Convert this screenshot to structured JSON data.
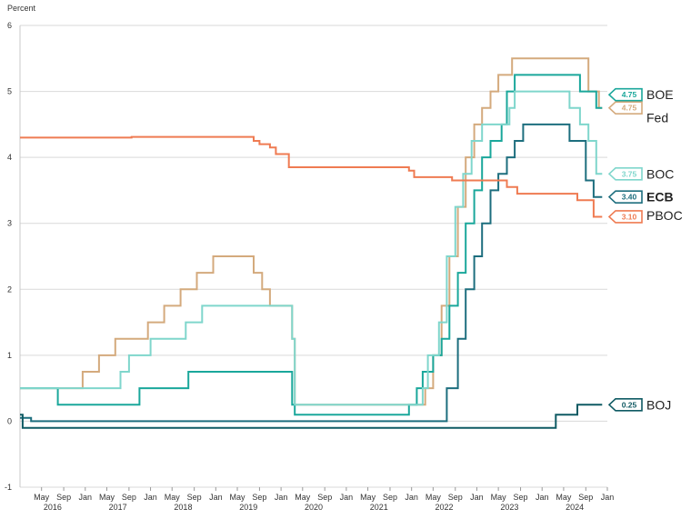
{
  "chart_data": {
    "type": "line",
    "ylabel": "Percent",
    "ylim": [
      -1,
      6
    ],
    "y_ticks": [
      "-1",
      "0",
      "1",
      "2",
      "3",
      "4",
      "5",
      "6"
    ],
    "x_tick_labels": [
      {
        "label": "May",
        "date": 2016.33
      },
      {
        "label": "Sep",
        "date": 2016.67
      },
      {
        "label": "Jan",
        "date": 2017.0
      },
      {
        "label": "May",
        "date": 2017.33
      },
      {
        "label": "Sep",
        "date": 2017.67
      },
      {
        "label": "Jan",
        "date": 2018.0
      },
      {
        "label": "May",
        "date": 2018.33
      },
      {
        "label": "Sep",
        "date": 2018.67
      },
      {
        "label": "Jan",
        "date": 2019.0
      },
      {
        "label": "May",
        "date": 2019.33
      },
      {
        "label": "Sep",
        "date": 2019.67
      },
      {
        "label": "Jan",
        "date": 2020.0
      },
      {
        "label": "May",
        "date": 2020.33
      },
      {
        "label": "Sep",
        "date": 2020.67
      },
      {
        "label": "Jan",
        "date": 2021.0
      },
      {
        "label": "May",
        "date": 2021.33
      },
      {
        "label": "Sep",
        "date": 2021.67
      },
      {
        "label": "Jan",
        "date": 2022.0
      },
      {
        "label": "May",
        "date": 2022.33
      },
      {
        "label": "Sep",
        "date": 2022.67
      },
      {
        "label": "Jan",
        "date": 2023.0
      },
      {
        "label": "May",
        "date": 2023.33
      },
      {
        "label": "Sep",
        "date": 2023.67
      },
      {
        "label": "Jan",
        "date": 2024.0
      },
      {
        "label": "May",
        "date": 2024.33
      },
      {
        "label": "Sep",
        "date": 2024.67
      },
      {
        "label": "Jan",
        "date": 2025.0
      }
    ],
    "year_labels": [
      {
        "label": "2016",
        "date": 2016.5
      },
      {
        "label": "2017",
        "date": 2017.5
      },
      {
        "label": "2018",
        "date": 2018.5
      },
      {
        "label": "2019",
        "date": 2019.5
      },
      {
        "label": "2020",
        "date": 2020.5
      },
      {
        "label": "2021",
        "date": 2021.5
      },
      {
        "label": "2022",
        "date": 2022.5
      },
      {
        "label": "2023",
        "date": 2023.5
      },
      {
        "label": "2024",
        "date": 2024.5
      }
    ],
    "series": [
      {
        "name": "Fed",
        "color": "#d4aa7d",
        "bold": false,
        "end_value": "4.75",
        "label_y": 4.6,
        "box_y": 4.75,
        "points": [
          [
            2016.0,
            0.5
          ],
          [
            2016.96,
            0.5
          ],
          [
            2016.96,
            0.75
          ],
          [
            2017.21,
            0.75
          ],
          [
            2017.21,
            1.0
          ],
          [
            2017.46,
            1.0
          ],
          [
            2017.46,
            1.25
          ],
          [
            2017.96,
            1.25
          ],
          [
            2017.96,
            1.5
          ],
          [
            2018.21,
            1.5
          ],
          [
            2018.21,
            1.75
          ],
          [
            2018.46,
            1.75
          ],
          [
            2018.46,
            2.0
          ],
          [
            2018.71,
            2.0
          ],
          [
            2018.71,
            2.25
          ],
          [
            2018.96,
            2.25
          ],
          [
            2018.96,
            2.5
          ],
          [
            2019.58,
            2.5
          ],
          [
            2019.58,
            2.25
          ],
          [
            2019.71,
            2.25
          ],
          [
            2019.71,
            2.0
          ],
          [
            2019.83,
            2.0
          ],
          [
            2019.83,
            1.75
          ],
          [
            2020.17,
            1.75
          ],
          [
            2020.17,
            1.25
          ],
          [
            2020.21,
            1.25
          ],
          [
            2020.21,
            0.25
          ],
          [
            2022.21,
            0.25
          ],
          [
            2022.21,
            0.5
          ],
          [
            2022.33,
            0.5
          ],
          [
            2022.33,
            1.0
          ],
          [
            2022.46,
            1.0
          ],
          [
            2022.46,
            1.75
          ],
          [
            2022.58,
            1.75
          ],
          [
            2022.58,
            2.5
          ],
          [
            2022.71,
            2.5
          ],
          [
            2022.71,
            3.25
          ],
          [
            2022.83,
            3.25
          ],
          [
            2022.83,
            4.0
          ],
          [
            2022.96,
            4.0
          ],
          [
            2022.96,
            4.5
          ],
          [
            2023.08,
            4.5
          ],
          [
            2023.08,
            4.75
          ],
          [
            2023.21,
            4.75
          ],
          [
            2023.21,
            5.0
          ],
          [
            2023.33,
            5.0
          ],
          [
            2023.33,
            5.25
          ],
          [
            2023.54,
            5.25
          ],
          [
            2023.54,
            5.5
          ],
          [
            2024.71,
            5.5
          ],
          [
            2024.71,
            5.0
          ],
          [
            2024.87,
            5.0
          ],
          [
            2024.87,
            4.75
          ],
          [
            2024.92,
            4.75
          ]
        ]
      },
      {
        "name": "BOE",
        "color": "#1aa79b",
        "bold": false,
        "end_value": "4.75",
        "label_y": 4.95,
        "box_y": 4.95,
        "points": [
          [
            2016.0,
            0.5
          ],
          [
            2016.58,
            0.5
          ],
          [
            2016.58,
            0.25
          ],
          [
            2017.83,
            0.25
          ],
          [
            2017.83,
            0.5
          ],
          [
            2018.58,
            0.5
          ],
          [
            2018.58,
            0.75
          ],
          [
            2020.17,
            0.75
          ],
          [
            2020.17,
            0.25
          ],
          [
            2020.21,
            0.25
          ],
          [
            2020.21,
            0.1
          ],
          [
            2021.96,
            0.1
          ],
          [
            2021.96,
            0.25
          ],
          [
            2022.08,
            0.25
          ],
          [
            2022.08,
            0.5
          ],
          [
            2022.17,
            0.5
          ],
          [
            2022.17,
            0.75
          ],
          [
            2022.33,
            0.75
          ],
          [
            2022.33,
            1.0
          ],
          [
            2022.46,
            1.0
          ],
          [
            2022.46,
            1.25
          ],
          [
            2022.58,
            1.25
          ],
          [
            2022.58,
            1.75
          ],
          [
            2022.71,
            1.75
          ],
          [
            2022.71,
            2.25
          ],
          [
            2022.83,
            2.25
          ],
          [
            2022.83,
            3.0
          ],
          [
            2022.96,
            3.0
          ],
          [
            2022.96,
            3.5
          ],
          [
            2023.08,
            3.5
          ],
          [
            2023.08,
            4.0
          ],
          [
            2023.21,
            4.0
          ],
          [
            2023.21,
            4.25
          ],
          [
            2023.38,
            4.25
          ],
          [
            2023.38,
            4.5
          ],
          [
            2023.46,
            4.5
          ],
          [
            2023.46,
            5.0
          ],
          [
            2023.58,
            5.0
          ],
          [
            2023.58,
            5.25
          ],
          [
            2024.58,
            5.25
          ],
          [
            2024.58,
            5.0
          ],
          [
            2024.83,
            5.0
          ],
          [
            2024.83,
            4.75
          ],
          [
            2024.92,
            4.75
          ]
        ]
      },
      {
        "name": "BOC",
        "color": "#7fd6cc",
        "bold": false,
        "end_value": "3.75",
        "label_y": 3.75,
        "box_y": 3.75,
        "points": [
          [
            2016.0,
            0.5
          ],
          [
            2017.54,
            0.5
          ],
          [
            2017.54,
            0.75
          ],
          [
            2017.67,
            0.75
          ],
          [
            2017.67,
            1.0
          ],
          [
            2018.0,
            1.0
          ],
          [
            2018.0,
            1.25
          ],
          [
            2018.54,
            1.25
          ],
          [
            2018.54,
            1.5
          ],
          [
            2018.79,
            1.5
          ],
          [
            2018.79,
            1.75
          ],
          [
            2020.17,
            1.75
          ],
          [
            2020.17,
            1.25
          ],
          [
            2020.21,
            1.25
          ],
          [
            2020.21,
            0.25
          ],
          [
            2022.17,
            0.25
          ],
          [
            2022.17,
            0.5
          ],
          [
            2022.25,
            0.5
          ],
          [
            2022.25,
            1.0
          ],
          [
            2022.42,
            1.0
          ],
          [
            2022.42,
            1.5
          ],
          [
            2022.54,
            1.5
          ],
          [
            2022.54,
            2.5
          ],
          [
            2022.67,
            2.5
          ],
          [
            2022.67,
            3.25
          ],
          [
            2022.79,
            3.25
          ],
          [
            2022.79,
            3.75
          ],
          [
            2022.92,
            3.75
          ],
          [
            2022.92,
            4.25
          ],
          [
            2023.08,
            4.25
          ],
          [
            2023.08,
            4.5
          ],
          [
            2023.5,
            4.5
          ],
          [
            2023.5,
            4.75
          ],
          [
            2023.58,
            4.75
          ],
          [
            2023.58,
            5.0
          ],
          [
            2024.42,
            5.0
          ],
          [
            2024.42,
            4.75
          ],
          [
            2024.58,
            4.75
          ],
          [
            2024.58,
            4.5
          ],
          [
            2024.71,
            4.5
          ],
          [
            2024.71,
            4.25
          ],
          [
            2024.83,
            4.25
          ],
          [
            2024.83,
            3.75
          ],
          [
            2024.92,
            3.75
          ]
        ]
      },
      {
        "name": "ECB",
        "color": "#1d6e7e",
        "bold": true,
        "end_value": "3.40",
        "label_y": 3.4,
        "box_y": 3.4,
        "points": [
          [
            2016.0,
            0.05
          ],
          [
            2016.17,
            0.05
          ],
          [
            2016.17,
            0.0
          ],
          [
            2022.54,
            0.0
          ],
          [
            2022.54,
            0.5
          ],
          [
            2022.71,
            0.5
          ],
          [
            2022.71,
            1.25
          ],
          [
            2022.83,
            1.25
          ],
          [
            2022.83,
            2.0
          ],
          [
            2022.96,
            2.0
          ],
          [
            2022.96,
            2.5
          ],
          [
            2023.08,
            2.5
          ],
          [
            2023.08,
            3.0
          ],
          [
            2023.21,
            3.0
          ],
          [
            2023.21,
            3.5
          ],
          [
            2023.33,
            3.5
          ],
          [
            2023.33,
            3.75
          ],
          [
            2023.46,
            3.75
          ],
          [
            2023.46,
            4.0
          ],
          [
            2023.58,
            4.0
          ],
          [
            2023.58,
            4.25
          ],
          [
            2023.71,
            4.25
          ],
          [
            2023.71,
            4.5
          ],
          [
            2024.42,
            4.5
          ],
          [
            2024.42,
            4.25
          ],
          [
            2024.67,
            4.25
          ],
          [
            2024.67,
            3.65
          ],
          [
            2024.79,
            3.65
          ],
          [
            2024.79,
            3.4
          ],
          [
            2024.92,
            3.4
          ]
        ]
      },
      {
        "name": "PBOC",
        "color": "#ef7b52",
        "bold": false,
        "end_value": "3.10",
        "label_y": 3.12,
        "box_y": 3.1,
        "points": [
          [
            2016.0,
            4.3
          ],
          [
            2017.71,
            4.3
          ],
          [
            2017.71,
            4.31
          ],
          [
            2019.58,
            4.31
          ],
          [
            2019.58,
            4.25
          ],
          [
            2019.67,
            4.25
          ],
          [
            2019.67,
            4.2
          ],
          [
            2019.83,
            4.2
          ],
          [
            2019.83,
            4.15
          ],
          [
            2019.92,
            4.15
          ],
          [
            2019.92,
            4.05
          ],
          [
            2020.12,
            4.05
          ],
          [
            2020.12,
            3.85
          ],
          [
            2021.96,
            3.85
          ],
          [
            2021.96,
            3.8
          ],
          [
            2022.04,
            3.8
          ],
          [
            2022.04,
            3.7
          ],
          [
            2022.62,
            3.7
          ],
          [
            2022.62,
            3.65
          ],
          [
            2023.46,
            3.65
          ],
          [
            2023.46,
            3.55
          ],
          [
            2023.62,
            3.55
          ],
          [
            2023.62,
            3.45
          ],
          [
            2024.54,
            3.45
          ],
          [
            2024.54,
            3.35
          ],
          [
            2024.79,
            3.35
          ],
          [
            2024.79,
            3.1
          ],
          [
            2024.92,
            3.1
          ]
        ]
      },
      {
        "name": "BOJ",
        "color": "#0f5a63",
        "bold": false,
        "end_value": "0.25",
        "label_y": 0.25,
        "box_y": 0.25,
        "points": [
          [
            2016.0,
            0.1
          ],
          [
            2016.04,
            0.1
          ],
          [
            2016.04,
            -0.1
          ],
          [
            2024.21,
            -0.1
          ],
          [
            2024.21,
            0.1
          ],
          [
            2024.54,
            0.1
          ],
          [
            2024.54,
            0.25
          ],
          [
            2024.92,
            0.25
          ]
        ]
      }
    ]
  }
}
